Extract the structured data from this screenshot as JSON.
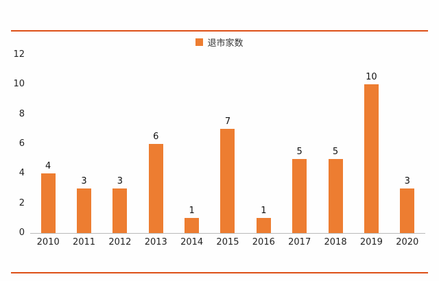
{
  "page": {
    "rule_color": "#dd4f17",
    "axis_color": "#b9b9b9"
  },
  "chart_data": {
    "type": "bar",
    "title": "",
    "legend": {
      "label": "退市家数",
      "color": "#ed7d31"
    },
    "legend_position": "top",
    "categories": [
      "2010",
      "2011",
      "2012",
      "2013",
      "2014",
      "2015",
      "2016",
      "2017",
      "2018",
      "2019",
      "2020"
    ],
    "values": [
      4,
      3,
      3,
      6,
      1,
      7,
      1,
      5,
      5,
      10,
      3
    ],
    "xlabel": "",
    "ylabel": "",
    "ylim": [
      0,
      12
    ],
    "yticks": [
      0,
      2,
      4,
      6,
      8,
      10,
      12
    ],
    "bar_color": "#ed7d31",
    "grid": false,
    "data_labels": true
  }
}
